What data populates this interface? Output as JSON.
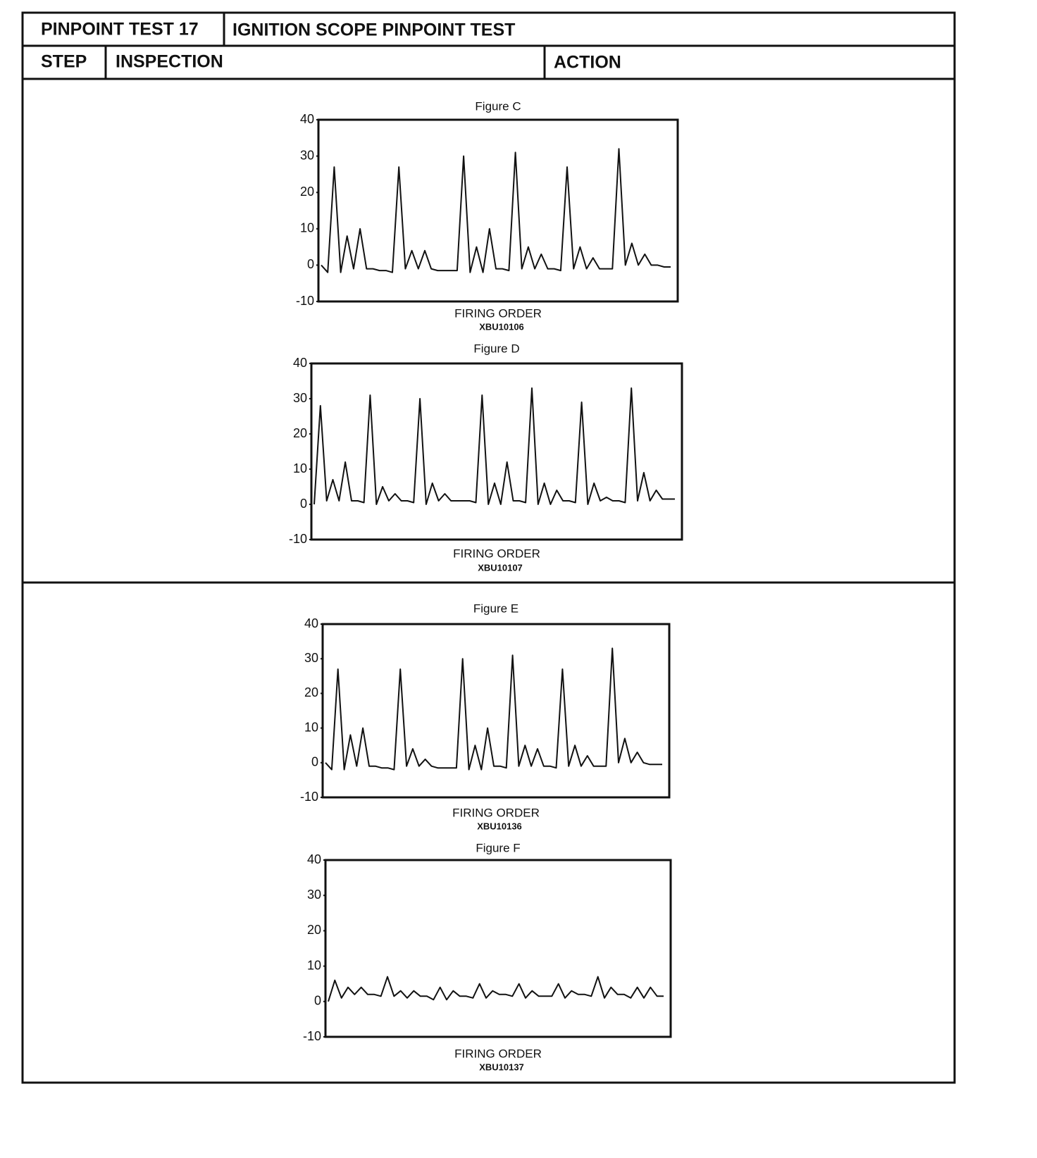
{
  "header": {
    "test": "PINPOINT TEST 17",
    "title": "IGNITION SCOPE PINPOINT TEST"
  },
  "columns": [
    "STEP",
    "INSPECTION",
    "ACTION"
  ],
  "chart_data": [
    {
      "type": "line",
      "title": "Figure C",
      "x_label": "FIRING ORDER",
      "code": "XBU10106",
      "color": "#111111",
      "ylim": [
        -10,
        40
      ],
      "yticks": [
        40,
        30,
        20,
        10,
        0,
        -10
      ],
      "values": [
        0,
        -2,
        27,
        -2,
        8,
        -1,
        10,
        -1,
        -1,
        -1.5,
        -1.5,
        -2,
        27,
        -1,
        4,
        -1,
        4,
        -1,
        -1.5,
        -1.5,
        -1.5,
        -1.5,
        30,
        -2,
        5,
        -2,
        10,
        -1,
        -1,
        -1.5,
        31,
        -1,
        5,
        -1,
        3,
        -1,
        -1,
        -1.5,
        27,
        -1,
        5,
        -1,
        2,
        -1,
        -1,
        -1,
        32,
        0,
        6,
        0,
        3,
        0,
        0,
        -0.5,
        -0.5
      ]
    },
    {
      "type": "line",
      "title": "Figure D",
      "x_label": "FIRING ORDER",
      "code": "XBU10107",
      "color": "#111111",
      "ylim": [
        -10,
        40
      ],
      "yticks": [
        40,
        30,
        20,
        10,
        0,
        -10
      ],
      "values": [
        0,
        28,
        1,
        7,
        1,
        12,
        1,
        1,
        0.5,
        31,
        0,
        5,
        1,
        3,
        1,
        1,
        0.5,
        30,
        0,
        6,
        1,
        3,
        1,
        1,
        1,
        1,
        0.5,
        31,
        0,
        6,
        0,
        12,
        1,
        1,
        0.5,
        33,
        0,
        6,
        0,
        4,
        1,
        1,
        0.5,
        29,
        0,
        6,
        1,
        2,
        1,
        1,
        0.5,
        33,
        1,
        9,
        1,
        4,
        1.5,
        1.5,
        1.5
      ]
    },
    {
      "type": "line",
      "title": "Figure E",
      "x_label": "FIRING ORDER",
      "code": "XBU10136",
      "color": "#111111",
      "ylim": [
        -10,
        40
      ],
      "yticks": [
        40,
        30,
        20,
        10,
        0,
        -10
      ],
      "values": [
        0,
        -2,
        27,
        -2,
        8,
        -1,
        10,
        -1,
        -1,
        -1.5,
        -1.5,
        -2,
        27,
        -1,
        4,
        -1,
        1,
        -1,
        -1.5,
        -1.5,
        -1.5,
        -1.5,
        30,
        -2,
        5,
        -2,
        10,
        -1,
        -1,
        -1.5,
        31,
        -1,
        5,
        -1,
        4,
        -1,
        -1,
        -1.5,
        27,
        -1,
        5,
        -1,
        2,
        -1,
        -1,
        -1,
        33,
        0,
        7,
        0,
        3,
        0,
        -0.5,
        -0.5,
        -0.5
      ]
    },
    {
      "type": "line",
      "title": "Figure F",
      "x_label": "FIRING ORDER",
      "code": "XBU10137",
      "color": "#111111",
      "ylim": [
        -10,
        40
      ],
      "yticks": [
        40,
        30,
        20,
        10,
        0,
        -10
      ],
      "values": [
        0,
        6,
        1,
        4,
        2,
        4,
        2,
        2,
        1.5,
        7,
        1.5,
        3,
        1,
        3,
        1.5,
        1.5,
        0.5,
        4,
        0.5,
        3,
        1.5,
        1.5,
        1,
        5,
        1,
        3,
        2,
        2,
        1.5,
        5,
        1,
        3,
        1.5,
        1.5,
        1.5,
        5,
        1,
        3,
        2,
        2,
        1.5,
        7,
        1,
        4,
        2,
        2,
        1,
        4,
        1,
        4,
        1.5,
        1.5
      ]
    }
  ]
}
